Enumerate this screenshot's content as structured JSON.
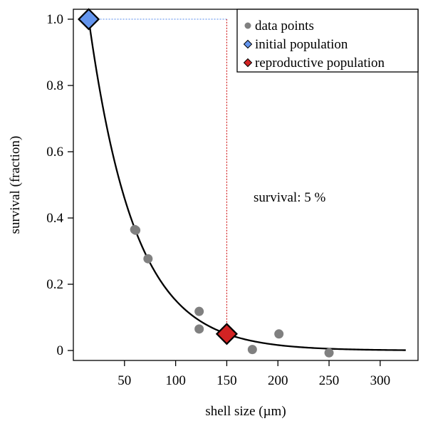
{
  "chart_data": {
    "type": "scatter",
    "xlabel": "shell size (µm)",
    "ylabel": "survival (fraction)",
    "xlim": [
      0,
      337
    ],
    "ylim": [
      -0.03,
      1.03
    ],
    "x_ticks": [
      50,
      100,
      150,
      200,
      250,
      300
    ],
    "y_ticks": [
      0,
      0.2,
      0.4,
      0.6,
      0.8,
      1.0
    ],
    "x_tick_labels": [
      "50",
      "100",
      "150",
      "200",
      "250",
      "300"
    ],
    "y_tick_labels": [
      "0",
      "0.2",
      "0.4",
      "0.6",
      "0.8",
      "1.0"
    ],
    "grid": false,
    "legend_position": "top-right",
    "legend": [
      {
        "label": "data points",
        "marker": "circle",
        "color": "#808080"
      },
      {
        "label": "initial population",
        "marker": "diamond",
        "color": "#6495ED"
      },
      {
        "label": "reproductive population",
        "marker": "diamond",
        "color": "#D22323"
      }
    ],
    "series": [
      {
        "name": "data points",
        "marker": "circle",
        "color": "#808080",
        "points": [
          [
            60,
            0.365
          ],
          [
            61,
            0.363
          ],
          [
            73,
            0.277
          ],
          [
            123,
            0.118
          ],
          [
            123,
            0.065
          ],
          [
            175,
            0.003
          ],
          [
            201,
            0.05
          ],
          [
            250,
            -0.007
          ]
        ]
      },
      {
        "name": "initial population",
        "marker": "diamond",
        "color": "#6495ED",
        "points": [
          [
            15,
            1.0
          ]
        ]
      },
      {
        "name": "reproductive population",
        "marker": "diamond",
        "color": "#D22323",
        "points": [
          [
            150,
            0.05
          ]
        ]
      }
    ],
    "fit_curve": {
      "type": "exponential",
      "x0": 15,
      "y0": 1.0,
      "x1": 150,
      "y1": 0.05,
      "x_range": [
        15,
        325
      ],
      "color": "#000000"
    },
    "reference_lines": [
      {
        "orientation": "horizontal",
        "y": 1.0,
        "x_from": 15,
        "x_to": 150,
        "color": "#6495ED",
        "style": "dotted"
      },
      {
        "orientation": "vertical",
        "x": 150,
        "y_from": 0.05,
        "y_to": 1.0,
        "color": "#D22323",
        "style": "dotted"
      }
    ],
    "annotation": {
      "text": "survival: 5 %",
      "x": 150,
      "y": 0.46
    }
  }
}
